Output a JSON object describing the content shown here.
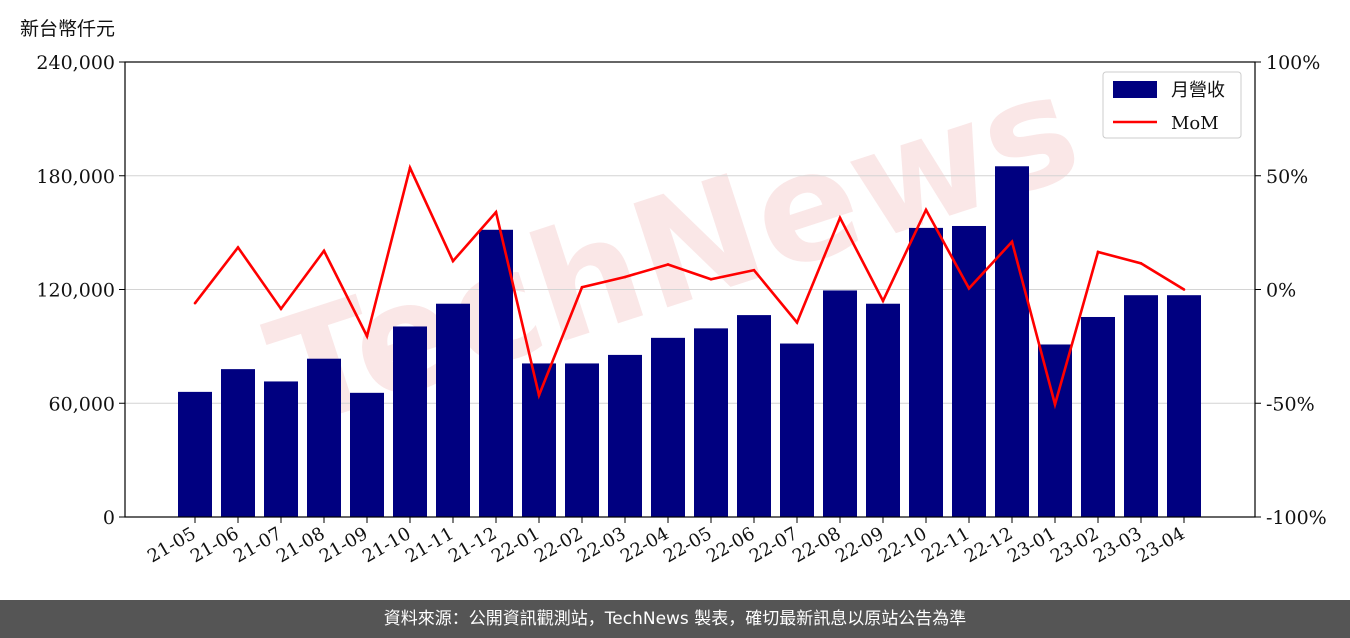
{
  "unit_label": "新台幣仟元",
  "footer_text": "資料來源：公開資訊觀測站，TechNews 製表，確切最新訊息以原站公告為準",
  "watermark": "TechNews",
  "chart_data": {
    "type": "bar",
    "categories": [
      "21-05",
      "21-06",
      "21-07",
      "21-08",
      "21-09",
      "21-10",
      "21-11",
      "21-12",
      "22-01",
      "22-02",
      "22-03",
      "22-04",
      "22-05",
      "22-06",
      "22-07",
      "22-08",
      "22-09",
      "22-10",
      "22-11",
      "22-12",
      "23-01",
      "23-02",
      "23-03",
      "23-04"
    ],
    "series": [
      {
        "name": "月營收",
        "type": "bar",
        "axis": "left",
        "color": "#000080",
        "values": [
          66000,
          78000,
          71500,
          83500,
          65500,
          100500,
          112500,
          151500,
          81000,
          81000,
          85500,
          94500,
          99500,
          106500,
          91500,
          119500,
          112500,
          152500,
          153500,
          185000,
          91000,
          105500,
          117000,
          117000
        ]
      },
      {
        "name": "MoM",
        "type": "line",
        "axis": "right",
        "color": "#ff0000",
        "values": [
          -6,
          18.5,
          -8.5,
          17,
          -20.5,
          53.5,
          12.5,
          34,
          -46.5,
          1,
          5.5,
          11,
          4.5,
          8.5,
          -14.5,
          31.5,
          -5,
          35,
          0.5,
          21,
          -50.5,
          16.5,
          11.5,
          0
        ]
      }
    ],
    "y_left": {
      "min": 0,
      "max": 240000,
      "ticks": [
        0,
        60000,
        120000,
        180000,
        240000
      ],
      "tick_labels": [
        "0",
        "60,000",
        "120,000",
        "180,000",
        "240,000"
      ]
    },
    "y_right": {
      "min": -100,
      "max": 100,
      "ticks": [
        -100,
        -50,
        0,
        50,
        100
      ],
      "tick_labels": [
        "-100%",
        "-50%",
        "0%",
        "50%",
        "100%"
      ]
    },
    "grid": true,
    "legend": "top-right"
  }
}
